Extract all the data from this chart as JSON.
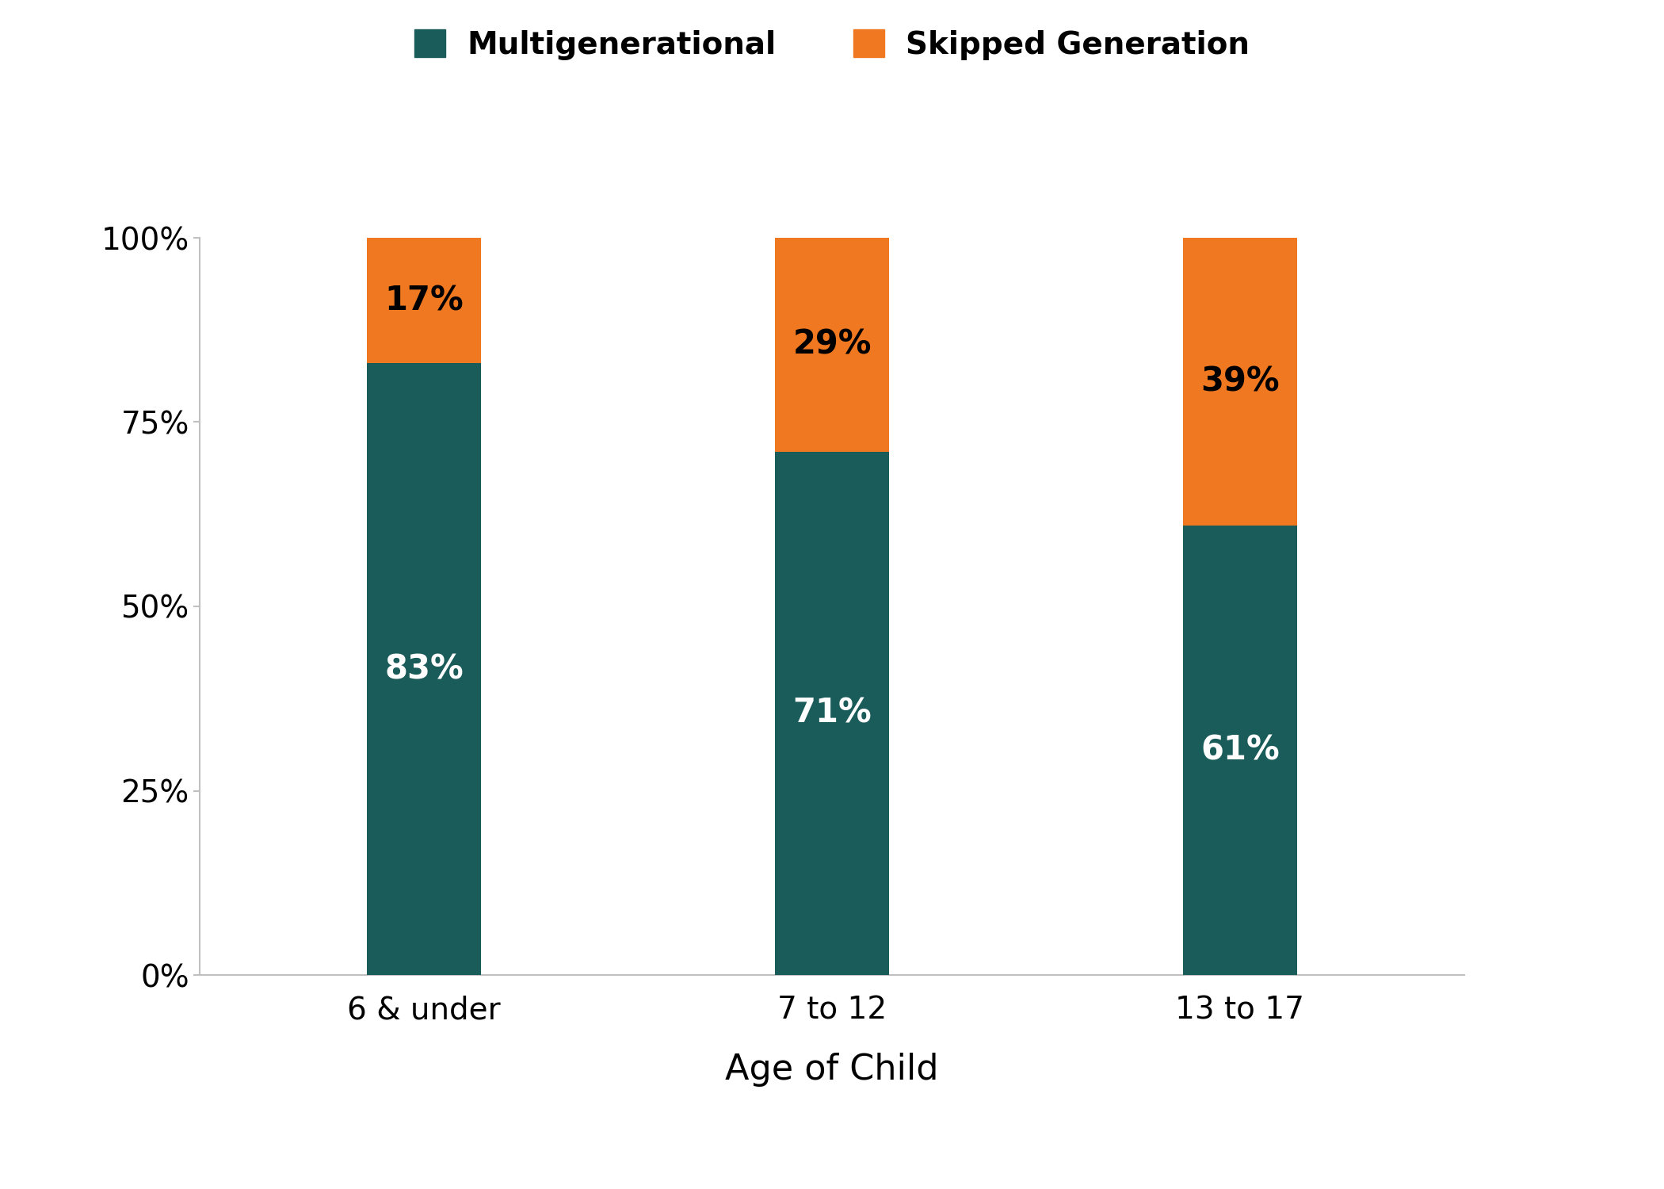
{
  "categories": [
    "6 & under",
    "7 to 12",
    "13 to 17"
  ],
  "multigenerational": [
    0.83,
    0.71,
    0.61
  ],
  "skipped_generation": [
    0.17,
    0.29,
    0.39
  ],
  "multigenerational_labels": [
    "83%",
    "71%",
    "61%"
  ],
  "skipped_labels": [
    "17%",
    "29%",
    "39%"
  ],
  "color_teal": "#1a5c5a",
  "color_orange": "#f07820",
  "legend_multi": "Multigenerational",
  "legend_skip": "Skipped Generation",
  "xlabel": "Age of Child",
  "yticks": [
    0,
    0.25,
    0.5,
    0.75,
    1.0
  ],
  "ytick_labels": [
    "0%",
    "25%",
    "50%",
    "75%",
    "100%"
  ],
  "bar_width": 0.28,
  "label_fontsize": 30,
  "tick_fontsize": 28,
  "legend_fontsize": 28,
  "xlabel_fontsize": 32,
  "background_color": "#ffffff",
  "spine_color": "#c0c0c0",
  "tick_color": "#c0c0c0"
}
